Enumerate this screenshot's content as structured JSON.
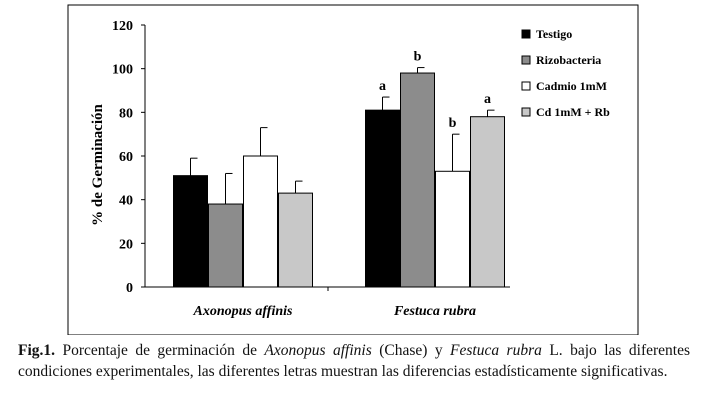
{
  "chart_data": {
    "type": "bar",
    "ylabel": "% de Germinación",
    "ylim": [
      0,
      120
    ],
    "yticks": [
      0,
      20,
      40,
      60,
      80,
      100,
      120
    ],
    "categories": [
      "Axonopus affinis",
      "Festuca rubra"
    ],
    "legend_position": "top-right",
    "grid": false,
    "series": [
      {
        "name": "Testigo",
        "color": "#000000",
        "values": [
          51,
          81
        ],
        "errors": [
          8,
          6
        ],
        "labels": [
          "",
          "a"
        ]
      },
      {
        "name": "Rizobacteria",
        "color": "#8c8c8c",
        "values": [
          38,
          98
        ],
        "errors": [
          14,
          2.5
        ],
        "labels": [
          "",
          "b"
        ]
      },
      {
        "name": "Cadmio 1mM",
        "color": "#ffffff",
        "values": [
          60,
          53
        ],
        "errors": [
          13,
          17
        ],
        "labels": [
          "",
          "b"
        ]
      },
      {
        "name": "Cd 1mM + Rb",
        "color": "#c8c8c8",
        "values": [
          43,
          78
        ],
        "errors": [
          5.5,
          3
        ],
        "labels": [
          "",
          "a"
        ]
      }
    ]
  },
  "caption": {
    "fig_label": "Fig.1.",
    "text_1": " Porcentaje de germinación de ",
    "species_1": "Axonopus affinis",
    "text_2": " (Chase) y ",
    "species_2": "Festuca rubra",
    "text_3": " L. bajo las diferentes condiciones experimentales, las diferentes letras muestran las diferencias estadísticamente significativas."
  }
}
